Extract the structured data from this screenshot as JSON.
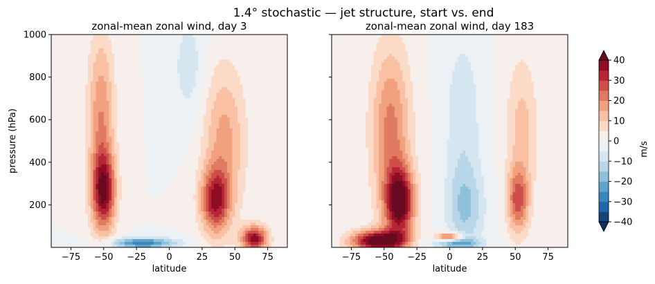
{
  "figure": {
    "suptitle": "1.4° stochastic — jet structure, start vs. end"
  },
  "colorbar": {
    "label": "m/s",
    "ticks": [
      -40,
      -30,
      -20,
      -10,
      0,
      10,
      20,
      30,
      40
    ],
    "tick_labels": [
      "−40",
      "−30",
      "−20",
      "−10",
      "0",
      "10",
      "20",
      "30",
      "40"
    ],
    "levels": [
      -40,
      -35,
      -30,
      -25,
      -20,
      -15,
      -10,
      -5,
      0,
      5,
      10,
      15,
      20,
      25,
      30,
      35,
      40
    ],
    "colors": [
      "#154578",
      "#2166ac",
      "#3a87bd",
      "#5ea3cc",
      "#8ec1dc",
      "#b7d7e8",
      "#d6e6f0",
      "#ecf1f5",
      "#f7efec",
      "#fbdac8",
      "#f9c0a3",
      "#f2a17f",
      "#e07b62",
      "#cd4f4a",
      "#b52535",
      "#8f0c25"
    ],
    "under_color": "#0d3060",
    "over_color": "#670a1f"
  },
  "chart_data": [
    {
      "type": "heatmap",
      "subtype": "filled-contour",
      "title": "zonal-mean zonal wind, day 3",
      "xlabel": "latitude",
      "ylabel": "pressure (hPa)",
      "xlim": [
        -90,
        90
      ],
      "ylim": [
        1000,
        0
      ],
      "x_ticks": [
        -75,
        -50,
        -25,
        0,
        25,
        50,
        75
      ],
      "x_tick_labels": [
        "−75",
        "−50",
        "−25",
        "0",
        "25",
        "50",
        "75"
      ],
      "y_ticks": [
        200,
        400,
        600,
        800,
        1000
      ],
      "y_tick_labels": [
        "200",
        "400",
        "600",
        "800",
        "1000"
      ],
      "units": "m/s",
      "features": [
        {
          "kind": "westerly_jet",
          "lat": -50,
          "pressure_hPa": 260,
          "u_max": 35,
          "lat_half_width": 9,
          "p_half_width": 180
        },
        {
          "kind": "westerly_column",
          "lat": -52,
          "pressure_hPa": 600,
          "u_max": 20,
          "lat_half_width": 10,
          "p_half_width": 400
        },
        {
          "kind": "westerly_jet",
          "lat": 35,
          "pressure_hPa": 220,
          "u_max": 32,
          "lat_half_width": 11,
          "p_half_width": 150
        },
        {
          "kind": "westerly_column",
          "lat": 42,
          "pressure_hPa": 500,
          "u_max": 17,
          "lat_half_width": 16,
          "p_half_width": 350
        },
        {
          "kind": "westerly_jet",
          "lat": 65,
          "pressure_hPa": 40,
          "u_max": 38,
          "lat_half_width": 10,
          "p_half_width": 60
        },
        {
          "kind": "easterly_band",
          "lat": -20,
          "pressure_hPa": 20,
          "u_min": -28,
          "lat_half_width": 25,
          "p_half_width": 25
        },
        {
          "kind": "easterly_weak",
          "lat": 15,
          "pressure_hPa": 850,
          "u_min": -8,
          "lat_half_width": 12,
          "p_half_width": 250
        }
      ]
    },
    {
      "type": "heatmap",
      "subtype": "filled-contour",
      "title": "zonal-mean zonal wind, day 183",
      "xlabel": "latitude",
      "ylabel": "",
      "xlim": [
        -90,
        90
      ],
      "ylim": [
        1000,
        0
      ],
      "x_ticks": [
        -75,
        -50,
        -25,
        0,
        25,
        50,
        75
      ],
      "x_tick_labels": [
        "−75",
        "−50",
        "−25",
        "0",
        "25",
        "50",
        "75"
      ],
      "y_ticks": [
        200,
        400,
        600,
        800,
        1000
      ],
      "y_tick_labels": [],
      "units": "m/s",
      "features": [
        {
          "kind": "westerly_jet",
          "lat": -38,
          "pressure_hPa": 210,
          "u_max": 42,
          "lat_half_width": 11,
          "p_half_width": 160
        },
        {
          "kind": "westerly_column",
          "lat": -45,
          "pressure_hPa": 550,
          "u_max": 22,
          "lat_half_width": 15,
          "p_half_width": 400
        },
        {
          "kind": "westerly_jet",
          "lat": -55,
          "pressure_hPa": 30,
          "u_max": 45,
          "lat_half_width": 20,
          "p_half_width": 50
        },
        {
          "kind": "westerly_tongue",
          "lat": 0,
          "pressure_hPa": 50,
          "u_max": 30,
          "lat_half_width": 10,
          "p_half_width": 20
        },
        {
          "kind": "westerly_jet",
          "lat": 52,
          "pressure_hPa": 220,
          "u_max": 25,
          "lat_half_width": 8,
          "p_half_width": 150
        },
        {
          "kind": "westerly_column",
          "lat": 55,
          "pressure_hPa": 550,
          "u_max": 12,
          "lat_half_width": 12,
          "p_half_width": 350
        },
        {
          "kind": "easterly_band",
          "lat": 12,
          "pressure_hPa": 180,
          "u_min": -14,
          "lat_half_width": 14,
          "p_half_width": 200
        },
        {
          "kind": "easterly_band",
          "lat": 5,
          "pressure_hPa": 20,
          "u_min": -18,
          "lat_half_width": 18,
          "p_half_width": 25
        },
        {
          "kind": "easterly_weak",
          "lat": 10,
          "pressure_hPa": 600,
          "u_min": -9,
          "lat_half_width": 14,
          "p_half_width": 400
        }
      ]
    }
  ]
}
